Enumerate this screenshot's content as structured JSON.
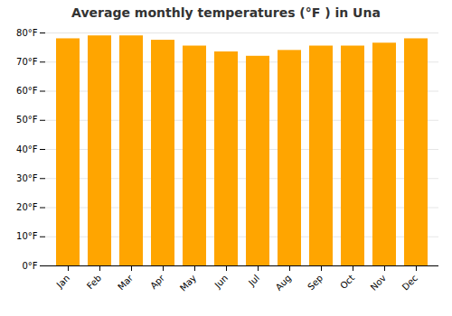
{
  "chart_data": {
    "type": "bar",
    "title": "Average monthly temperatures (°F ) in Una",
    "categories": [
      "Jan",
      "Feb",
      "Mar",
      "Apr",
      "May",
      "Jun",
      "Jul",
      "Aug",
      "Sep",
      "Oct",
      "Nov",
      "Dec"
    ],
    "values": [
      78.0,
      79.0,
      79.0,
      77.5,
      75.5,
      73.5,
      72.0,
      74.0,
      75.5,
      75.5,
      76.5,
      78.0
    ],
    "color": "#FFA500",
    "ylim": [
      0,
      80
    ],
    "yticks": [
      {
        "value": 0,
        "label": "0°F"
      },
      {
        "value": 10,
        "label": "10°F"
      },
      {
        "value": 20,
        "label": "20°F"
      },
      {
        "value": 30,
        "label": "30°F"
      },
      {
        "value": 40,
        "label": "40°F"
      },
      {
        "value": 50,
        "label": "50°F"
      },
      {
        "value": 60,
        "label": "60°F"
      },
      {
        "value": 70,
        "label": "70°F"
      },
      {
        "value": 80,
        "label": "80°F"
      }
    ],
    "grid": true
  }
}
